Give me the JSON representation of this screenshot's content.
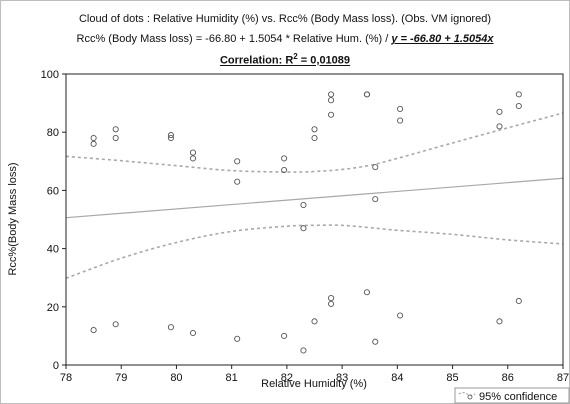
{
  "title": {
    "line1": "Cloud of dots : Relative Humidity (%) vs. Rcc% (Body Mass loss). (Obs. VM ignored)",
    "line2_prefix": "Rcc% (Body Mass loss) = -66.80 + 1.5054 * Relative Hum. (%) / ",
    "line2_equation": "y = -66.80 + 1.5054x",
    "line3_label": "Correlation: R",
    "line3_sup": "2",
    "line3_value": " = 0,01089"
  },
  "colors": {
    "regression_line": "#a8a8a8",
    "confidence_band": "#a8a8a8",
    "points": "#555555",
    "axis": "#222222"
  },
  "chart_data": {
    "type": "scatter",
    "xlabel": "Relative Humidity (%)",
    "ylabel": "Rcc%(Body Mass loss)",
    "xlim": [
      78,
      87
    ],
    "ylim": [
      0,
      100
    ],
    "x_ticks": [
      "78",
      "79",
      "80",
      "81",
      "82",
      "83",
      "84",
      "85",
      "86",
      "87"
    ],
    "y_ticks": [
      "0",
      "20",
      "40",
      "60",
      "80",
      "100"
    ],
    "legend": {
      "label": "95% confidence",
      "placement": "bottom-right"
    },
    "regression": {
      "intercept": -66.8,
      "slope": 1.5054
    },
    "confidence_band": {
      "x": [
        78,
        79,
        80,
        81,
        82,
        82.5,
        83,
        83.5,
        84,
        85,
        86,
        87
      ],
      "upper": [
        71.7,
        70.2,
        68.5,
        66.8,
        66.3,
        66.5,
        67.2,
        68.6,
        71.0,
        76.3,
        81.5,
        86.6
      ],
      "lower": [
        29.8,
        36.7,
        42.1,
        45.9,
        47.7,
        48.0,
        48.0,
        47.2,
        46.3,
        44.9,
        43.0,
        41.6
      ]
    },
    "points": [
      {
        "x": 78.5,
        "y": 78
      },
      {
        "x": 78.5,
        "y": 76
      },
      {
        "x": 78.5,
        "y": 12
      },
      {
        "x": 78.9,
        "y": 81
      },
      {
        "x": 78.9,
        "y": 78
      },
      {
        "x": 78.9,
        "y": 14
      },
      {
        "x": 79.9,
        "y": 79
      },
      {
        "x": 79.9,
        "y": 78
      },
      {
        "x": 79.9,
        "y": 13
      },
      {
        "x": 80.3,
        "y": 73
      },
      {
        "x": 80.3,
        "y": 71
      },
      {
        "x": 80.3,
        "y": 11
      },
      {
        "x": 81.1,
        "y": 70
      },
      {
        "x": 81.1,
        "y": 63
      },
      {
        "x": 81.1,
        "y": 9
      },
      {
        "x": 81.95,
        "y": 71
      },
      {
        "x": 81.95,
        "y": 67
      },
      {
        "x": 81.95,
        "y": 10
      },
      {
        "x": 82.3,
        "y": 55
      },
      {
        "x": 82.3,
        "y": 47
      },
      {
        "x": 82.3,
        "y": 5
      },
      {
        "x": 82.5,
        "y": 81
      },
      {
        "x": 82.5,
        "y": 78
      },
      {
        "x": 82.5,
        "y": 15
      },
      {
        "x": 82.8,
        "y": 93
      },
      {
        "x": 82.8,
        "y": 91
      },
      {
        "x": 82.8,
        "y": 86
      },
      {
        "x": 82.8,
        "y": 23
      },
      {
        "x": 82.8,
        "y": 21
      },
      {
        "x": 83.45,
        "y": 93
      },
      {
        "x": 83.45,
        "y": 93
      },
      {
        "x": 83.45,
        "y": 25
      },
      {
        "x": 83.6,
        "y": 68
      },
      {
        "x": 83.6,
        "y": 57
      },
      {
        "x": 83.6,
        "y": 8
      },
      {
        "x": 84.05,
        "y": 88
      },
      {
        "x": 84.05,
        "y": 84
      },
      {
        "x": 84.05,
        "y": 17
      },
      {
        "x": 85.85,
        "y": 87
      },
      {
        "x": 85.85,
        "y": 82
      },
      {
        "x": 85.85,
        "y": 15
      },
      {
        "x": 86.2,
        "y": 93
      },
      {
        "x": 86.2,
        "y": 89
      },
      {
        "x": 86.2,
        "y": 22
      }
    ]
  }
}
